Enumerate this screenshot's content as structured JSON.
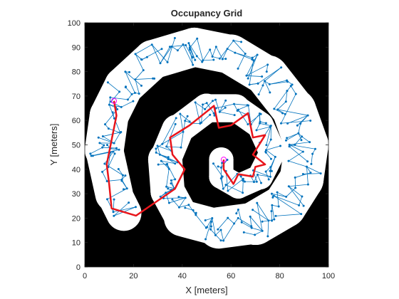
{
  "chart_data": {
    "type": "scatter",
    "title": "Occupancy Grid",
    "xlabel": "X [meters]",
    "ylabel": "Y [meters]",
    "xlim": [
      0,
      100
    ],
    "ylim": [
      0,
      100
    ],
    "xticks": [
      "0",
      "20",
      "40",
      "60",
      "80",
      "100"
    ],
    "yticks": [
      "0",
      "10",
      "20",
      "30",
      "40",
      "50",
      "60",
      "70",
      "80",
      "90",
      "100"
    ],
    "grid": false,
    "colors": {
      "occupied": "#000000",
      "free": "#ffffff",
      "tree": "#0072BD",
      "path": "#e8151b",
      "endpoint": "#ff00ff",
      "axes": "#262626"
    },
    "free_space_centerline": [
      [
        16,
        22
      ],
      [
        12,
        30
      ],
      [
        8,
        48
      ],
      [
        10,
        62
      ],
      [
        16,
        74
      ],
      [
        28,
        85
      ],
      [
        45,
        90
      ],
      [
        60,
        87
      ],
      [
        75,
        78
      ],
      [
        86,
        64
      ],
      [
        91,
        50
      ],
      [
        89,
        36
      ],
      [
        82,
        25
      ],
      [
        70,
        18
      ],
      [
        55,
        16
      ],
      [
        40,
        20
      ],
      [
        34,
        31
      ],
      [
        33,
        44
      ],
      [
        38,
        56
      ],
      [
        50,
        65
      ],
      [
        62,
        65
      ],
      [
        72,
        58
      ],
      [
        77,
        47
      ],
      [
        72,
        37
      ],
      [
        63,
        33
      ],
      [
        56,
        37
      ],
      [
        56,
        44
      ]
    ],
    "free_space_width": [
      7,
      7.5,
      8,
      8,
      8,
      8,
      8,
      8,
      8.5,
      9,
      9,
      9,
      9,
      9,
      8,
      7,
      7,
      7,
      6,
      6,
      5.5,
      5.5,
      5.5,
      5,
      5,
      5,
      5
    ],
    "planned_path": [
      [
        12,
        68
      ],
      [
        13,
        62
      ],
      [
        11,
        52
      ],
      [
        9,
        42
      ],
      [
        10,
        34
      ],
      [
        11,
        24
      ],
      [
        21,
        21
      ],
      [
        37,
        32
      ],
      [
        41,
        40
      ],
      [
        36,
        46
      ],
      [
        35,
        53
      ],
      [
        43,
        58
      ],
      [
        53,
        66
      ],
      [
        55,
        57
      ],
      [
        60,
        58
      ],
      [
        67,
        63
      ],
      [
        69,
        53
      ],
      [
        74,
        54
      ],
      [
        69,
        46
      ],
      [
        74,
        42
      ],
      [
        70,
        41
      ],
      [
        69,
        37
      ],
      [
        63,
        38
      ],
      [
        61,
        34
      ],
      [
        57,
        40
      ],
      [
        57,
        44
      ]
    ],
    "start": [
      12,
      68
    ],
    "goal": [
      57,
      44
    ]
  }
}
